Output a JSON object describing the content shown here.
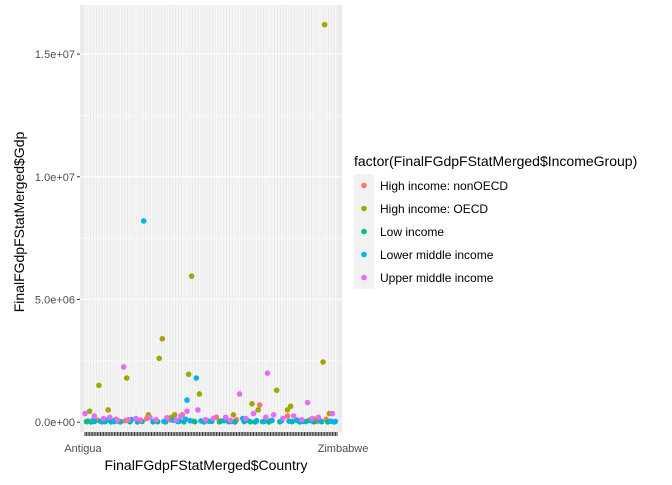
{
  "chart_data": {
    "type": "scatter",
    "title": "",
    "xlabel": "FinalFGdpFStatMerged$Country",
    "ylabel": "FinalFGdpFStatMerged$Gdp",
    "x_tick_first": "Antigua",
    "x_tick_last": "Zimbabwe",
    "y_ticks": [
      {
        "value": 0,
        "label": "0.0e+00"
      },
      {
        "value": 5000000,
        "label": "5.0e+06"
      },
      {
        "value": 10000000,
        "label": "1.0e+07"
      },
      {
        "value": 15000000,
        "label": "1.5e+07"
      }
    ],
    "ylim": [
      -400000,
      17000000
    ],
    "grid": true,
    "legend": {
      "title": "factor(FinalFGdpFStatMerged$IncomeGroup)",
      "position": "right"
    },
    "series": [
      {
        "name": "High income: nonOECD",
        "color": "#F8766D",
        "points": [
          [
            2,
            50000
          ],
          [
            8,
            80000
          ],
          [
            20,
            120000
          ],
          [
            26,
            60000
          ],
          [
            40,
            150000
          ],
          [
            55,
            90000
          ],
          [
            63,
            300000
          ],
          [
            70,
            40000
          ],
          [
            85,
            200000
          ],
          [
            98,
            100000
          ],
          [
            113,
            700000
          ],
          [
            120,
            60000
          ],
          [
            131,
            250000
          ],
          [
            145,
            80000
          ],
          [
            150,
            30000
          ],
          [
            156,
            120000
          ]
        ]
      },
      {
        "name": "High income: OECD",
        "color": "#A3A500",
        "points": [
          [
            3,
            450000
          ],
          [
            9,
            1500000
          ],
          [
            15,
            500000
          ],
          [
            27,
            1800000
          ],
          [
            41,
            300000
          ],
          [
            48,
            2600000
          ],
          [
            50,
            3400000
          ],
          [
            56,
            200000
          ],
          [
            58,
            300000
          ],
          [
            67,
            1950000
          ],
          [
            69,
            5950000
          ],
          [
            74,
            1150000
          ],
          [
            88,
            50000
          ],
          [
            96,
            300000
          ],
          [
            108,
            750000
          ],
          [
            112,
            500000
          ],
          [
            124,
            1300000
          ],
          [
            131,
            500000
          ],
          [
            133,
            650000
          ],
          [
            149,
            120000
          ],
          [
            154,
            2450000
          ],
          [
            155,
            16200000
          ],
          [
            158,
            350000
          ]
        ]
      },
      {
        "name": "Low income",
        "color": "#00BF7D",
        "points": [
          [
            1,
            20000
          ],
          [
            4,
            10000
          ],
          [
            6,
            30000
          ],
          [
            11,
            15000
          ],
          [
            13,
            20000
          ],
          [
            17,
            10000
          ],
          [
            19,
            25000
          ],
          [
            23,
            15000
          ],
          [
            29,
            20000
          ],
          [
            34,
            10000
          ],
          [
            37,
            30000
          ],
          [
            44,
            15000
          ],
          [
            47,
            20000
          ],
          [
            52,
            10000
          ],
          [
            60,
            25000
          ],
          [
            64,
            15000
          ],
          [
            71,
            20000
          ],
          [
            77,
            10000
          ],
          [
            82,
            30000
          ],
          [
            87,
            15000
          ],
          [
            93,
            20000
          ],
          [
            97,
            10000
          ],
          [
            103,
            25000
          ],
          [
            107,
            15000
          ],
          [
            110,
            10000
          ],
          [
            115,
            20000
          ],
          [
            119,
            10000
          ],
          [
            126,
            15000
          ],
          [
            134,
            20000
          ],
          [
            139,
            10000
          ],
          [
            143,
            25000
          ],
          [
            148,
            15000
          ],
          [
            153,
            20000
          ],
          [
            157,
            10000
          ],
          [
            161,
            10000
          ]
        ]
      },
      {
        "name": "Lower middle income",
        "color": "#00B0F6",
        "points": [
          [
            5,
            60000
          ],
          [
            10,
            40000
          ],
          [
            14,
            80000
          ],
          [
            18,
            50000
          ],
          [
            22,
            30000
          ],
          [
            30,
            100000
          ],
          [
            35,
            60000
          ],
          [
            38,
            8200000
          ],
          [
            45,
            50000
          ],
          [
            51,
            30000
          ],
          [
            57,
            80000
          ],
          [
            61,
            40000
          ],
          [
            65,
            120000
          ],
          [
            66,
            900000
          ],
          [
            68,
            60000
          ],
          [
            72,
            1800000
          ],
          [
            75,
            50000
          ],
          [
            80,
            40000
          ],
          [
            90,
            60000
          ],
          [
            95,
            30000
          ],
          [
            102,
            150000
          ],
          [
            105,
            80000
          ],
          [
            111,
            60000
          ],
          [
            116,
            40000
          ],
          [
            121,
            70000
          ],
          [
            127,
            50000
          ],
          [
            132,
            40000
          ],
          [
            137,
            80000
          ],
          [
            141,
            30000
          ],
          [
            146,
            60000
          ],
          [
            152,
            50000
          ],
          [
            159,
            40000
          ],
          [
            162,
            30000
          ]
        ]
      },
      {
        "name": "Upper middle income",
        "color": "#E76BF3",
        "points": [
          [
            0,
            350000
          ],
          [
            6,
            250000
          ],
          [
            12,
            150000
          ],
          [
            16,
            200000
          ],
          [
            21,
            80000
          ],
          [
            25,
            2250000
          ],
          [
            28,
            100000
          ],
          [
            33,
            150000
          ],
          [
            36,
            80000
          ],
          [
            42,
            200000
          ],
          [
            46,
            100000
          ],
          [
            53,
            180000
          ],
          [
            59,
            90000
          ],
          [
            62,
            250000
          ],
          [
            66,
            450000
          ],
          [
            73,
            500000
          ],
          [
            78,
            100000
          ],
          [
            83,
            150000
          ],
          [
            91,
            200000
          ],
          [
            94,
            80000
          ],
          [
            100,
            1150000
          ],
          [
            104,
            150000
          ],
          [
            109,
            350000
          ],
          [
            117,
            200000
          ],
          [
            118,
            2000000
          ],
          [
            122,
            300000
          ],
          [
            128,
            150000
          ],
          [
            135,
            250000
          ],
          [
            140,
            100000
          ],
          [
            144,
            800000
          ],
          [
            147,
            150000
          ],
          [
            151,
            200000
          ],
          [
            160,
            350000
          ]
        ]
      }
    ]
  }
}
